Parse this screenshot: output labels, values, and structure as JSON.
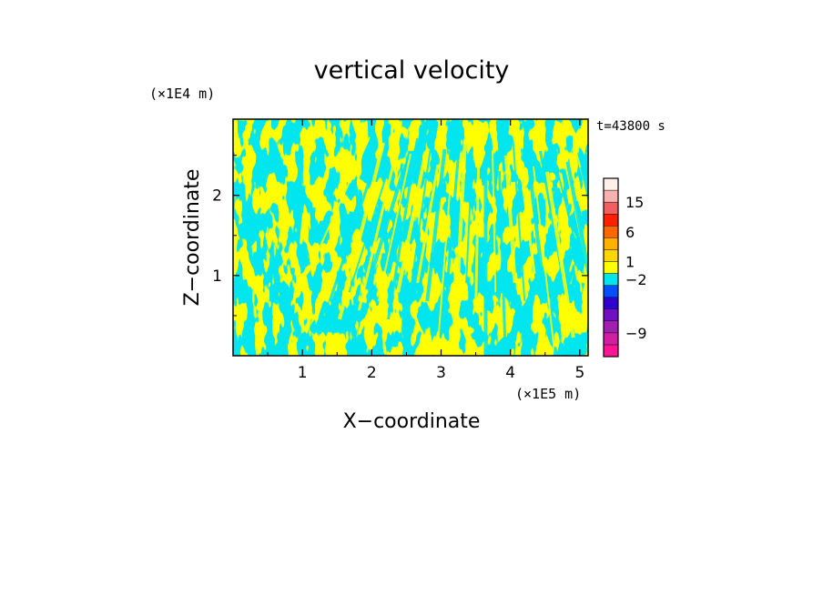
{
  "chart_data": {
    "type": "heatmap",
    "title": "vertical velocity",
    "xlabel": "X−coordinate",
    "ylabel": "Z−coordinate",
    "x_unit": "(×1E5 m)",
    "y_unit": "(×1E4 m)",
    "time_label": "t=43800 s",
    "xlim": [
      0,
      5.12
    ],
    "ylim": [
      0,
      2.95
    ],
    "x_ticks": [
      {
        "value": 1,
        "label": "1"
      },
      {
        "value": 2,
        "label": "2"
      },
      {
        "value": 3,
        "label": "3"
      },
      {
        "value": 4,
        "label": "4"
      },
      {
        "value": 5,
        "label": "5"
      }
    ],
    "y_ticks": [
      {
        "value": 1,
        "label": "1"
      },
      {
        "value": 2,
        "label": "2"
      }
    ],
    "field_colors": {
      "positive": "#ffff00",
      "negative": "#00e5ee"
    },
    "colorbar": {
      "levels": [
        {
          "color": "#ff1493"
        },
        {
          "color": "#d01fa0"
        },
        {
          "color": "#a020b0"
        },
        {
          "color": "#7010c0"
        },
        {
          "color": "#3000d0"
        },
        {
          "color": "#0050ff"
        },
        {
          "color": "#00e5ee"
        },
        {
          "color": "#ffff00"
        },
        {
          "color": "#ffd700"
        },
        {
          "color": "#ffb000"
        },
        {
          "color": "#ff6600"
        },
        {
          "color": "#ff2000"
        },
        {
          "color": "#f06060"
        },
        {
          "color": "#f8b0b0"
        },
        {
          "color": "#fff0ea"
        }
      ],
      "labels": [
        {
          "text": "15",
          "at_level": 13
        },
        {
          "text": "6",
          "at_level": 10.5
        },
        {
          "text": "1",
          "at_level": 8
        },
        {
          "text": "−2",
          "at_level": 6.5
        },
        {
          "text": "−9",
          "at_level": 2
        }
      ]
    }
  }
}
